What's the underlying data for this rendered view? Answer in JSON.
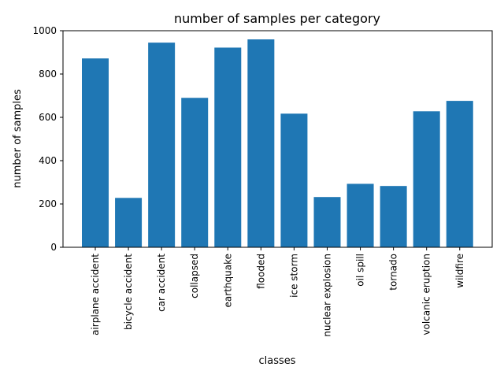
{
  "chart_data": {
    "type": "bar",
    "title": "number of samples per category",
    "xlabel": "classes",
    "ylabel": "number of samples",
    "categories": [
      "airplane accident",
      "bicycle accident",
      "car accident",
      "collapsed",
      "earthquake",
      "flooded",
      "ice storm",
      "nuclear explosion",
      "oil spill",
      "tornado",
      "volcanic eruption",
      "wildfire"
    ],
    "values": [
      872,
      228,
      945,
      690,
      922,
      960,
      617,
      232,
      293,
      283,
      628,
      676
    ],
    "ylim": [
      0,
      1000
    ],
    "yticks": [
      "0",
      "200",
      "400",
      "600",
      "800",
      "1000"
    ],
    "grid": false,
    "bar_color": "#1f77b4"
  }
}
